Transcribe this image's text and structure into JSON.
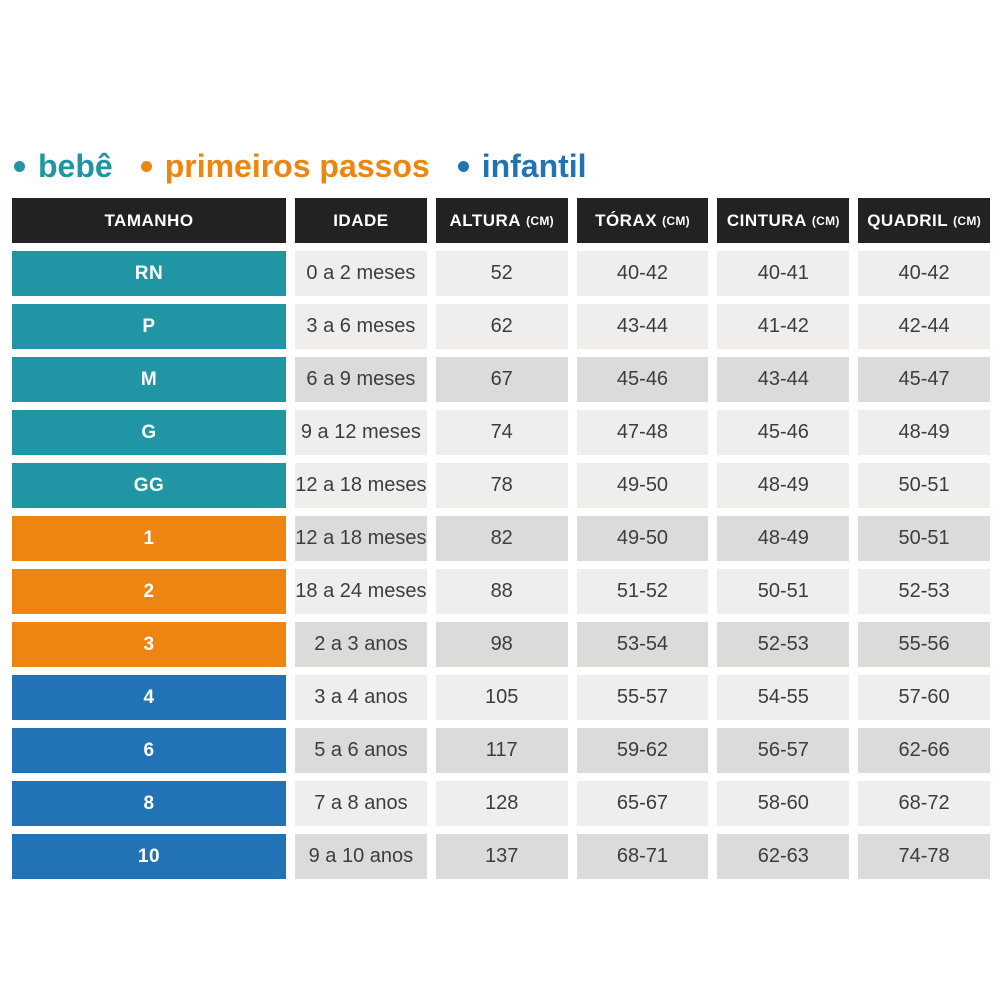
{
  "legend": {
    "items": [
      {
        "label": "bebê",
        "color": "#2096a4"
      },
      {
        "label": "primeiros passos",
        "color": "#ef8511"
      },
      {
        "label": "infantil",
        "color": "#2273b6"
      }
    ]
  },
  "table": {
    "columns": [
      {
        "label": "TAMANHO",
        "unit": ""
      },
      {
        "label": "IDADE",
        "unit": ""
      },
      {
        "label": "ALTURA",
        "unit": "(CM)"
      },
      {
        "label": "TÓRAX",
        "unit": "(CM)"
      },
      {
        "label": "CINTURA",
        "unit": "(CM)"
      },
      {
        "label": "QUADRIL",
        "unit": "(CM)"
      }
    ],
    "rows": [
      {
        "size": "RN",
        "group": "bebe",
        "shade": "light",
        "age": "0 a 2 meses",
        "height": "52",
        "chest": "40-42",
        "waist": "40-41",
        "hip": "40-42"
      },
      {
        "size": "P",
        "group": "bebe",
        "shade": "light",
        "age": "3 a 6 meses",
        "height": "62",
        "chest": "43-44",
        "waist": "41-42",
        "hip": "42-44"
      },
      {
        "size": "M",
        "group": "bebe",
        "shade": "dark",
        "age": "6 a 9 meses",
        "height": "67",
        "chest": "45-46",
        "waist": "43-44",
        "hip": "45-47"
      },
      {
        "size": "G",
        "group": "bebe",
        "shade": "light",
        "age": "9 a 12 meses",
        "height": "74",
        "chest": "47-48",
        "waist": "45-46",
        "hip": "48-49"
      },
      {
        "size": "GG",
        "group": "bebe",
        "shade": "light",
        "age": "12 a 18 meses",
        "height": "78",
        "chest": "49-50",
        "waist": "48-49",
        "hip": "50-51"
      },
      {
        "size": "1",
        "group": "primeiros-passos",
        "shade": "dark",
        "age": "12 a 18 meses",
        "height": "82",
        "chest": "49-50",
        "waist": "48-49",
        "hip": "50-51"
      },
      {
        "size": "2",
        "group": "primeiros-passos",
        "shade": "light",
        "age": "18 a 24 meses",
        "height": "88",
        "chest": "51-52",
        "waist": "50-51",
        "hip": "52-53"
      },
      {
        "size": "3",
        "group": "primeiros-passos",
        "shade": "dark",
        "age": "2 a 3 anos",
        "height": "98",
        "chest": "53-54",
        "waist": "52-53",
        "hip": "55-56"
      },
      {
        "size": "4",
        "group": "infantil",
        "shade": "light",
        "age": "3 a 4 anos",
        "height": "105",
        "chest": "55-57",
        "waist": "54-55",
        "hip": "57-60"
      },
      {
        "size": "6",
        "group": "infantil",
        "shade": "dark",
        "age": "5 a 6 anos",
        "height": "117",
        "chest": "59-62",
        "waist": "56-57",
        "hip": "62-66"
      },
      {
        "size": "8",
        "group": "infantil",
        "shade": "light",
        "age": "7 a 8 anos",
        "height": "128",
        "chest": "65-67",
        "waist": "58-60",
        "hip": "68-72"
      },
      {
        "size": "10",
        "group": "infantil",
        "shade": "dark",
        "age": "9 a 10 anos",
        "height": "137",
        "chest": "68-71",
        "waist": "62-63",
        "hip": "74-78"
      }
    ]
  },
  "colors": {
    "bebe": "#2096a4",
    "primeiros_passos": "#ef8511",
    "infantil": "#2273b6",
    "header_bg": "#242122",
    "row_light": "#efeeec",
    "row_dark": "#dcdbd9",
    "cell_text": "#3d3d3d"
  },
  "chart_data": {
    "type": "table",
    "title": "",
    "legend_entries": [
      "bebê",
      "primeiros passos",
      "infantil"
    ],
    "columns": [
      "TAMANHO",
      "IDADE",
      "ALTURA (CM)",
      "TÓRAX (CM)",
      "CINTURA (CM)",
      "QUADRIL (CM)"
    ],
    "rows": [
      [
        "RN",
        "0 a 2 meses",
        "52",
        "40-42",
        "40-41",
        "40-42"
      ],
      [
        "P",
        "3 a 6 meses",
        "62",
        "43-44",
        "41-42",
        "42-44"
      ],
      [
        "M",
        "6 a 9 meses",
        "67",
        "45-46",
        "43-44",
        "45-47"
      ],
      [
        "G",
        "9 a 12 meses",
        "74",
        "47-48",
        "45-46",
        "48-49"
      ],
      [
        "GG",
        "12 a 18 meses",
        "78",
        "49-50",
        "48-49",
        "50-51"
      ],
      [
        "1",
        "12 a 18 meses",
        "82",
        "49-50",
        "48-49",
        "50-51"
      ],
      [
        "2",
        "18 a 24 meses",
        "88",
        "51-52",
        "50-51",
        "52-53"
      ],
      [
        "3",
        "2 a 3 anos",
        "98",
        "53-54",
        "52-53",
        "55-56"
      ],
      [
        "4",
        "3 a 4 anos",
        "105",
        "55-57",
        "54-55",
        "57-60"
      ],
      [
        "6",
        "5 a 6 anos",
        "117",
        "59-62",
        "56-57",
        "62-66"
      ],
      [
        "8",
        "7 a 8 anos",
        "128",
        "65-67",
        "58-60",
        "68-72"
      ],
      [
        "10",
        "9 a 10 anos",
        "137",
        "68-71",
        "62-63",
        "74-78"
      ]
    ],
    "row_groups": {
      "bebê": [
        "RN",
        "P",
        "M",
        "G",
        "GG"
      ],
      "primeiros passos": [
        "1",
        "2",
        "3"
      ],
      "infantil": [
        "4",
        "6",
        "8",
        "10"
      ]
    }
  }
}
